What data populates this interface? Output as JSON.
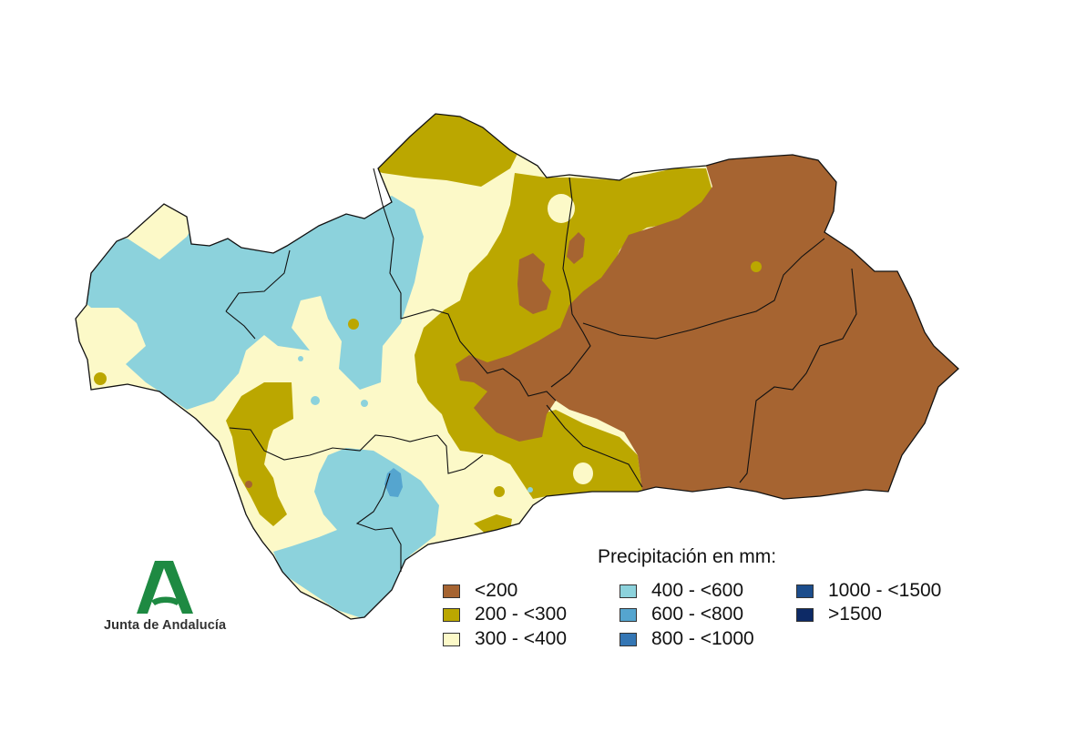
{
  "legend": {
    "title": "Precipitación en mm:",
    "items": [
      {
        "label": "<200",
        "color": "#a66431"
      },
      {
        "label": "200 - <300",
        "color": "#bba700"
      },
      {
        "label": "300 - <400",
        "color": "#fcf9c8"
      },
      {
        "label": "400 - <600",
        "color": "#8cd2dc"
      },
      {
        "label": "600 - <800",
        "color": "#55a5cf"
      },
      {
        "label": "800 - <1000",
        "color": "#3476b4"
      },
      {
        "label": "1000 - <1500",
        "color": "#1c4d8c"
      },
      {
        "label": ">1500",
        "color": "#0d2a66"
      }
    ]
  },
  "logo": {
    "text": "Junta de Andalucía",
    "color": "#1e8a42"
  }
}
